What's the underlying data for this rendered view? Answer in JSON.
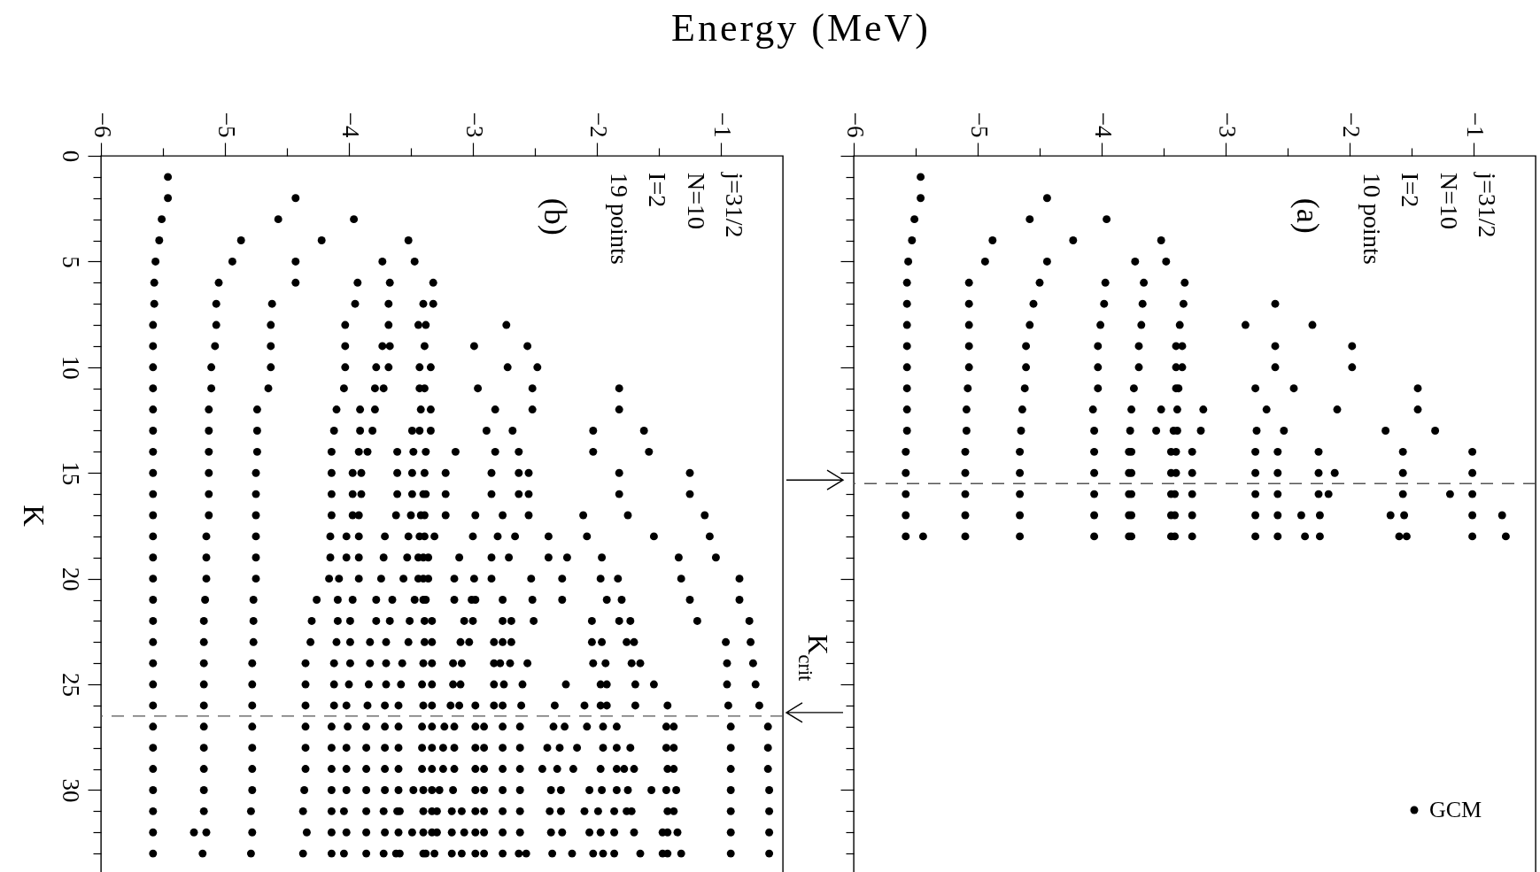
{
  "chart_data": [
    {
      "type": "scatter",
      "xlabel": "Energy (MeV)",
      "ylabel": "K",
      "xlim": [
        -6,
        -0.5
      ],
      "ylim": [
        34,
        0
      ],
      "xticks": [
        -6,
        {
          "value": -5.5,
          "label": null
        },
        -5,
        {
          "value": -4.5,
          "label": null
        },
        -4,
        {
          "value": -3.5,
          "label": null
        },
        -3,
        {
          "value": -2.5,
          "label": null
        },
        -2,
        {
          "value": -1.5,
          "label": null
        },
        -1
      ],
      "yticks": [
        0,
        {
          "value": 1,
          "label": null
        },
        {
          "value": 2,
          "label": null
        },
        {
          "value": 3,
          "label": null
        },
        {
          "value": 4,
          "label": null
        },
        5,
        {
          "value": 6,
          "label": null
        },
        {
          "value": 7,
          "label": null
        },
        {
          "value": 8,
          "label": null
        },
        {
          "value": 9,
          "label": null
        },
        10,
        {
          "value": 11,
          "label": null
        },
        {
          "value": 12,
          "label": null
        },
        {
          "value": 13,
          "label": null
        },
        {
          "value": 14,
          "label": null
        },
        15,
        {
          "value": 16,
          "label": null
        },
        {
          "value": 17,
          "label": null
        },
        {
          "value": 18,
          "label": null
        },
        {
          "value": 19,
          "label": null
        },
        20,
        {
          "value": 21,
          "label": null
        },
        {
          "value": 22,
          "label": null
        },
        {
          "value": 23,
          "label": null
        },
        {
          "value": 24,
          "label": null
        },
        25,
        {
          "value": 26,
          "label": null
        },
        {
          "value": 27,
          "label": null
        },
        {
          "value": 28,
          "label": null
        },
        {
          "value": 29,
          "label": null
        },
        30,
        {
          "value": 31,
          "label": null
        },
        {
          "value": 32,
          "label": null
        },
        {
          "value": 33,
          "label": null
        }
      ],
      "marker": "circle",
      "color": "#000000",
      "annotations": [
        "j=31/2",
        "N=10",
        "I=2",
        "19 points",
        "(b)"
      ],
      "ref_lines": [
        {
          "axis": "y",
          "value": 26.5,
          "label": "K$_{crit}$",
          "color": "#555555",
          "line_style": "dashed"
        }
      ],
      "x": [
        -5.46,
        -5.46,
        -4.43,
        -5.51,
        -4.57,
        -3.96,
        -5.53,
        -4.87,
        -4.22,
        -3.52,
        -5.56,
        -4.94,
        -4.43,
        -3.73,
        -3.47,
        -5.57,
        -5.05,
        -4.43,
        -3.93,
        -3.67,
        -3.32,
        -5.57,
        -5.07,
        -4.62,
        -3.95,
        -3.68,
        -3.4,
        -3.32,
        -5.58,
        -5.07,
        -4.63,
        -4.03,
        -3.68,
        -3.44,
        -3.38,
        -2.73,
        -5.58,
        -5.08,
        -4.63,
        -4.03,
        -3.73,
        -3.67,
        -3.39,
        -2.99,
        -2.56,
        -5.58,
        -5.11,
        -4.63,
        -4.03,
        -3.78,
        -3.68,
        -3.43,
        -3.34,
        -2.72,
        -2.48,
        -5.58,
        -5.11,
        -4.65,
        -4.04,
        -3.79,
        -3.72,
        -3.43,
        -3.39,
        -2.96,
        -2.52,
        -1.82,
        -5.58,
        -5.13,
        -4.74,
        -4.1,
        -3.91,
        -3.79,
        -3.42,
        -3.34,
        -2.82,
        -2.52,
        -1.82,
        -5.58,
        -5.13,
        -4.74,
        -4.12,
        -3.91,
        -3.81,
        -3.49,
        -3.43,
        -3.34,
        -2.89,
        -2.68,
        -2.03,
        -1.62,
        -5.58,
        -5.13,
        -4.74,
        -4.14,
        -3.92,
        -3.85,
        -3.61,
        -3.48,
        -3.38,
        -3.14,
        -2.82,
        -2.63,
        -2.03,
        -1.58,
        -5.58,
        -5.13,
        -4.75,
        -4.14,
        -3.97,
        -3.9,
        -3.61,
        -3.49,
        -3.39,
        -3.22,
        -2.85,
        -2.63,
        -2.55,
        -1.82,
        -1.25,
        -5.58,
        -5.13,
        -4.75,
        -4.14,
        -3.97,
        -3.9,
        -3.61,
        -3.49,
        -3.4,
        -3.38,
        -3.22,
        -2.85,
        -2.63,
        -2.55,
        -1.82,
        -1.25,
        -5.58,
        -5.13,
        -4.75,
        -4.14,
        -3.97,
        -3.92,
        -3.62,
        -3.5,
        -3.42,
        -3.39,
        -3.22,
        -2.98,
        -2.76,
        -2.55,
        -2.11,
        -1.75,
        -1.13,
        -5.58,
        -5.15,
        -4.75,
        -4.15,
        -4.02,
        -3.92,
        -3.71,
        -3.52,
        -3.43,
        -3.39,
        -3.31,
        -3.0,
        -2.8,
        -2.66,
        -2.39,
        -2.08,
        -1.54,
        -1.09,
        -5.58,
        -5.15,
        -4.75,
        -4.15,
        -4.02,
        -3.92,
        -3.72,
        -3.53,
        -3.44,
        -3.4,
        -3.36,
        -3.11,
        -2.85,
        -2.71,
        -2.39,
        -2.24,
        -1.96,
        -1.34,
        -1.04,
        -5.58,
        -5.15,
        -4.75,
        -4.16,
        -4.08,
        -3.92,
        -3.74,
        -3.56,
        -3.44,
        -3.4,
        -3.36,
        -3.15,
        -2.99,
        -2.85,
        -2.53,
        -2.28,
        -1.97,
        -1.83,
        -1.32,
        -0.85,
        -5.58,
        -5.16,
        -4.77,
        -4.26,
        -4.09,
        -3.97,
        -3.78,
        -3.65,
        -3.47,
        -3.4,
        -3.38,
        -3.15,
        -3.01,
        -2.98,
        -2.76,
        -2.52,
        -2.28,
        -1.92,
        -1.8,
        -1.25,
        -0.85,
        -5.58,
        -5.17,
        -4.77,
        -4.3,
        -4.09,
        -3.99,
        -3.78,
        -3.67,
        -3.51,
        -3.39,
        -3.33,
        -3.07,
        -3.0,
        -2.76,
        -2.69,
        -2.51,
        -2.04,
        -1.82,
        -1.73,
        -1.19,
        -0.77,
        -5.58,
        -5.17,
        -4.77,
        -4.31,
        -4.1,
        -3.99,
        -3.83,
        -3.7,
        -3.52,
        -3.39,
        -3.33,
        -3.1,
        -3.03,
        -2.83,
        -2.76,
        -2.69,
        -2.04,
        -1.96,
        -1.76,
        -1.7,
        -0.96,
        -0.76,
        -5.58,
        -5.17,
        -4.78,
        -4.35,
        -4.12,
        -3.99,
        -3.83,
        -3.7,
        -3.57,
        -3.4,
        -3.33,
        -3.16,
        -3.09,
        -2.83,
        -2.78,
        -2.7,
        -2.56,
        -2.03,
        -1.93,
        -1.72,
        -1.65,
        -0.95,
        -0.74,
        -5.58,
        -5.17,
        -4.78,
        -4.35,
        -4.12,
        -4.0,
        -3.84,
        -3.7,
        -3.58,
        -3.41,
        -3.33,
        -3.16,
        -3.1,
        -2.83,
        -2.75,
        -2.6,
        -2.25,
        -1.97,
        -1.92,
        -1.69,
        -1.54,
        -0.95,
        -0.72,
        -5.58,
        -5.17,
        -4.78,
        -4.35,
        -4.12,
        -4.02,
        -3.85,
        -3.71,
        -3.6,
        -3.4,
        -3.33,
        -3.18,
        -3.11,
        -2.98,
        -2.83,
        -2.76,
        -2.61,
        -2.34,
        -2.1,
        -1.97,
        -1.92,
        -1.69,
        -1.43,
        -0.94,
        -0.69,
        -5.58,
        -5.17,
        -4.78,
        -4.35,
        -4.14,
        -4.01,
        -3.86,
        -3.71,
        -3.6,
        -3.41,
        -3.33,
        -3.23,
        -3.15,
        -2.98,
        -2.91,
        -2.76,
        -2.62,
        -2.35,
        -2.26,
        -2.08,
        -1.95,
        -1.84,
        -1.44,
        -1.38,
        -0.92,
        -0.62,
        -5.58,
        -5.17,
        -4.78,
        -4.35,
        -4.14,
        -4.02,
        -3.86,
        -3.71,
        -3.6,
        -3.41,
        -3.33,
        -3.24,
        -3.15,
        -2.98,
        -2.91,
        -2.76,
        -2.62,
        -2.4,
        -2.3,
        -2.16,
        -1.95,
        -1.84,
        -1.73,
        -1.44,
        -1.38,
        -0.92,
        -0.62,
        -5.58,
        -5.17,
        -4.78,
        -4.35,
        -4.14,
        -4.02,
        -3.86,
        -3.71,
        -3.6,
        -3.41,
        -3.33,
        -3.24,
        -3.15,
        -2.98,
        -2.91,
        -2.76,
        -2.62,
        -2.44,
        -2.32,
        -2.19,
        -1.97,
        -1.84,
        -1.78,
        -1.7,
        -1.43,
        -1.38,
        -0.92,
        -0.62,
        -5.58,
        -5.17,
        -4.78,
        -4.36,
        -4.14,
        -4.02,
        -3.86,
        -3.71,
        -3.6,
        -3.48,
        -3.4,
        -3.33,
        -3.27,
        -3.16,
        -2.98,
        -2.91,
        -2.76,
        -2.62,
        -2.37,
        -2.29,
        -2.06,
        -1.96,
        -1.84,
        -1.75,
        -1.56,
        -1.44,
        -1.36,
        -0.92,
        -0.61,
        -5.58,
        -5.17,
        -4.79,
        -4.37,
        -4.14,
        -4.04,
        -3.86,
        -3.72,
        -3.61,
        -3.59,
        -3.4,
        -3.33,
        -3.29,
        -3.17,
        -3.09,
        -2.98,
        -2.91,
        -2.76,
        -2.62,
        -2.38,
        -2.29,
        -2.1,
        -1.99,
        -1.86,
        -1.76,
        -1.72,
        -1.43,
        -1.38,
        -0.92,
        -0.61,
        -5.58,
        -5.25,
        -5.15,
        -4.78,
        -4.34,
        -4.14,
        -4.02,
        -3.86,
        -3.71,
        -3.6,
        -3.49,
        -3.4,
        -3.33,
        -3.29,
        -3.17,
        -3.07,
        -2.98,
        -2.91,
        -2.76,
        -2.62,
        -2.37,
        -2.28,
        -2.06,
        -1.97,
        -1.86,
        -1.7,
        -1.47,
        -1.43,
        -1.35,
        -0.92,
        -0.61,
        -5.58,
        -5.18,
        -4.79,
        -4.37,
        -4.14,
        -4.04,
        -3.86,
        -3.72,
        -3.62,
        -3.59,
        -3.4,
        -3.38,
        -3.31,
        -3.17,
        -3.09,
        -2.98,
        -2.91,
        -2.76,
        -2.63,
        -2.57,
        -2.36,
        -2.2,
        -2.03,
        -1.95,
        -1.86,
        -1.65,
        -1.47,
        -1.43,
        -1.32,
        -0.92,
        -0.61
      ],
      "values": [
        1,
        2,
        2,
        3,
        3,
        3,
        4,
        4,
        4,
        4,
        5,
        5,
        5,
        5,
        5,
        6,
        6,
        6,
        6,
        6,
        6,
        7,
        7,
        7,
        7,
        7,
        7,
        7,
        8,
        8,
        8,
        8,
        8,
        8,
        8,
        8,
        9,
        9,
        9,
        9,
        9,
        9,
        9,
        9,
        9,
        10,
        10,
        10,
        10,
        10,
        10,
        10,
        10,
        10,
        10,
        11,
        11,
        11,
        11,
        11,
        11,
        11,
        11,
        11,
        11,
        11,
        12,
        12,
        12,
        12,
        12,
        12,
        12,
        12,
        12,
        12,
        12,
        13,
        13,
        13,
        13,
        13,
        13,
        13,
        13,
        13,
        13,
        13,
        13,
        13,
        14,
        14,
        14,
        14,
        14,
        14,
        14,
        14,
        14,
        14,
        14,
        14,
        14,
        14,
        15,
        15,
        15,
        15,
        15,
        15,
        15,
        15,
        15,
        15,
        15,
        15,
        15,
        15,
        15,
        16,
        16,
        16,
        16,
        16,
        16,
        16,
        16,
        16,
        16,
        16,
        16,
        16,
        16,
        16,
        16,
        17,
        17,
        17,
        17,
        17,
        17,
        17,
        17,
        17,
        17,
        17,
        17,
        17,
        17,
        17,
        17,
        17,
        18,
        18,
        18,
        18,
        18,
        18,
        18,
        18,
        18,
        18,
        18,
        18,
        18,
        18,
        18,
        18,
        18,
        18,
        19,
        19,
        19,
        19,
        19,
        19,
        19,
        19,
        19,
        19,
        19,
        19,
        19,
        19,
        19,
        19,
        19,
        19,
        19,
        20,
        20,
        20,
        20,
        20,
        20,
        20,
        20,
        20,
        20,
        20,
        20,
        20,
        20,
        20,
        20,
        20,
        20,
        20,
        20,
        21,
        21,
        21,
        21,
        21,
        21,
        21,
        21,
        21,
        21,
        21,
        21,
        21,
        21,
        21,
        21,
        21,
        21,
        21,
        21,
        21,
        22,
        22,
        22,
        22,
        22,
        22,
        22,
        22,
        22,
        22,
        22,
        22,
        22,
        22,
        22,
        22,
        22,
        22,
        22,
        22,
        22,
        23,
        23,
        23,
        23,
        23,
        23,
        23,
        23,
        23,
        23,
        23,
        23,
        23,
        23,
        23,
        23,
        23,
        23,
        23,
        23,
        23,
        23,
        24,
        24,
        24,
        24,
        24,
        24,
        24,
        24,
        24,
        24,
        24,
        24,
        24,
        24,
        24,
        24,
        24,
        24,
        24,
        24,
        24,
        24,
        24,
        25,
        25,
        25,
        25,
        25,
        25,
        25,
        25,
        25,
        25,
        25,
        25,
        25,
        25,
        25,
        25,
        25,
        25,
        25,
        25,
        25,
        25,
        25,
        26,
        26,
        26,
        26,
        26,
        26,
        26,
        26,
        26,
        26,
        26,
        26,
        26,
        26,
        26,
        26,
        26,
        26,
        26,
        26,
        26,
        26,
        26,
        26,
        26,
        27,
        27,
        27,
        27,
        27,
        27,
        27,
        27,
        27,
        27,
        27,
        27,
        27,
        27,
        27,
        27,
        27,
        27,
        27,
        27,
        27,
        27,
        27,
        27,
        27,
        27,
        28,
        28,
        28,
        28,
        28,
        28,
        28,
        28,
        28,
        28,
        28,
        28,
        28,
        28,
        28,
        28,
        28,
        28,
        28,
        28,
        28,
        28,
        28,
        28,
        28,
        28,
        28,
        29,
        29,
        29,
        29,
        29,
        29,
        29,
        29,
        29,
        29,
        29,
        29,
        29,
        29,
        29,
        29,
        29,
        29,
        29,
        29,
        29,
        29,
        29,
        29,
        29,
        29,
        29,
        29,
        30,
        30,
        30,
        30,
        30,
        30,
        30,
        30,
        30,
        30,
        30,
        30,
        30,
        30,
        30,
        30,
        30,
        30,
        30,
        30,
        30,
        30,
        30,
        30,
        30,
        30,
        30,
        30,
        30,
        31,
        31,
        31,
        31,
        31,
        31,
        31,
        31,
        31,
        31,
        31,
        31,
        31,
        31,
        31,
        31,
        31,
        31,
        31,
        31,
        31,
        31,
        31,
        31,
        31,
        31,
        31,
        31,
        31,
        31,
        32,
        32,
        32,
        32,
        32,
        32,
        32,
        32,
        32,
        32,
        32,
        32,
        32,
        32,
        32,
        32,
        32,
        32,
        32,
        32,
        32,
        32,
        32,
        32,
        32,
        32,
        32,
        32,
        32,
        32,
        32,
        33,
        33,
        33,
        33,
        33,
        33,
        33,
        33,
        33,
        33,
        33,
        33,
        33,
        33,
        33,
        33,
        33,
        33,
        33,
        33,
        33,
        33,
        33,
        33,
        33,
        33,
        33,
        33,
        33,
        33,
        33
      ]
    },
    {
      "type": "scatter",
      "xlim": [
        -6,
        -0.5
      ],
      "ylim": [
        34,
        0
      ],
      "tick_labels": "x",
      "xticks": [
        -6,
        {
          "value": -5.5,
          "label": null
        },
        -5,
        {
          "value": -4.5,
          "label": null
        },
        -4,
        {
          "value": -3.5,
          "label": null
        },
        -3,
        {
          "value": -2.5,
          "label": null
        },
        -2,
        {
          "value": -1.5,
          "label": null
        },
        -1
      ],
      "yticks": [
        0,
        {
          "value": 1,
          "label": null
        },
        {
          "value": 2,
          "label": null
        },
        {
          "value": 3,
          "label": null
        },
        {
          "value": 4,
          "label": null
        },
        5,
        {
          "value": 6,
          "label": null
        },
        {
          "value": 7,
          "label": null
        },
        {
          "value": 8,
          "label": null
        },
        {
          "value": 9,
          "label": null
        },
        10,
        {
          "value": 11,
          "label": null
        },
        {
          "value": 12,
          "label": null
        },
        {
          "value": 13,
          "label": null
        },
        {
          "value": 14,
          "label": null
        },
        15,
        {
          "value": 16,
          "label": null
        },
        {
          "value": 17,
          "label": null
        },
        {
          "value": 18,
          "label": null
        },
        {
          "value": 19,
          "label": null
        },
        20,
        {
          "value": 21,
          "label": null
        },
        {
          "value": 22,
          "label": null
        },
        {
          "value": 23,
          "label": null
        },
        {
          "value": 24,
          "label": null
        },
        25,
        {
          "value": 26,
          "label": null
        },
        {
          "value": 27,
          "label": null
        },
        {
          "value": 28,
          "label": null
        },
        {
          "value": 29,
          "label": null
        },
        30,
        {
          "value": 31,
          "label": null
        },
        {
          "value": 32,
          "label": null
        },
        {
          "value": 33,
          "label": null
        }
      ],
      "marker": "circle",
      "legend": "bottom right",
      "annotations": [
        "j=31/2",
        "N=10",
        "I=2",
        "10 points",
        "(a)"
      ],
      "ref_lines": [
        {
          "axis": "y",
          "value": 15.5,
          "color": "#555555",
          "line_style": "dashed"
        }
      ],
      "series": [
        {
          "name": "GCM",
          "color": "#000000",
          "x": [
            -5.46,
            -5.46,
            -4.44,
            -5.51,
            -4.58,
            -3.96,
            -5.53,
            -4.88,
            -4.23,
            -3.52,
            -5.56,
            -4.94,
            -4.44,
            -3.73,
            -3.48,
            -5.57,
            -5.07,
            -4.5,
            -3.97,
            -3.66,
            -3.33,
            -5.57,
            -5.07,
            -4.55,
            -3.98,
            -3.67,
            -3.34,
            -2.6,
            -5.57,
            -5.07,
            -4.58,
            -4.01,
            -3.68,
            -3.37,
            -2.84,
            -2.3,
            -5.57,
            -5.07,
            -4.61,
            -4.03,
            -3.7,
            -3.4,
            -3.35,
            -2.6,
            -1.98,
            -5.57,
            -5.07,
            -4.61,
            -4.03,
            -3.7,
            -3.4,
            -3.35,
            -2.6,
            -1.98,
            -5.57,
            -5.08,
            -4.62,
            -4.03,
            -3.74,
            -3.4,
            -3.38,
            -2.76,
            -2.45,
            -1.45,
            -5.57,
            -5.09,
            -4.64,
            -4.07,
            -3.76,
            -3.52,
            -3.39,
            -3.18,
            -2.67,
            -2.1,
            -1.45,
            -5.57,
            -5.09,
            -4.65,
            -4.06,
            -3.77,
            -3.56,
            -3.42,
            -3.39,
            -3.2,
            -2.75,
            -2.53,
            -1.71,
            -1.31,
            -5.58,
            -5.1,
            -4.66,
            -4.06,
            -3.78,
            -3.76,
            -3.44,
            -3.4,
            -3.27,
            -2.76,
            -2.58,
            -2.25,
            -1.57,
            -1.01,
            -5.58,
            -5.1,
            -4.66,
            -4.06,
            -3.78,
            -3.76,
            -3.44,
            -3.4,
            -3.27,
            -2.76,
            -2.58,
            -2.25,
            -2.12,
            -1.57,
            -1.01,
            -5.58,
            -5.1,
            -4.66,
            -4.06,
            -3.78,
            -3.76,
            -3.44,
            -3.41,
            -3.27,
            -2.76,
            -2.58,
            -2.25,
            -2.17,
            -1.57,
            -1.19,
            -1.01,
            -5.58,
            -5.1,
            -4.66,
            -4.06,
            -3.78,
            -3.76,
            -3.44,
            -3.41,
            -3.27,
            -2.76,
            -2.58,
            -2.39,
            -2.24,
            -1.67,
            -1.56,
            -1.01,
            -0.77,
            -5.58,
            -5.44,
            -5.1,
            -4.66,
            -4.06,
            -3.78,
            -3.76,
            -3.44,
            -3.41,
            -3.27,
            -2.76,
            -2.58,
            -2.36,
            -2.24,
            -1.6,
            -1.54,
            -1.01,
            -0.74
          ],
          "values": [
            1,
            2,
            2,
            3,
            3,
            3,
            4,
            4,
            4,
            4,
            5,
            5,
            5,
            5,
            5,
            6,
            6,
            6,
            6,
            6,
            6,
            7,
            7,
            7,
            7,
            7,
            7,
            7,
            8,
            8,
            8,
            8,
            8,
            8,
            8,
            8,
            9,
            9,
            9,
            9,
            9,
            9,
            9,
            9,
            9,
            10,
            10,
            10,
            10,
            10,
            10,
            10,
            10,
            10,
            11,
            11,
            11,
            11,
            11,
            11,
            11,
            11,
            11,
            11,
            12,
            12,
            12,
            12,
            12,
            12,
            12,
            12,
            12,
            12,
            12,
            13,
            13,
            13,
            13,
            13,
            13,
            13,
            13,
            13,
            13,
            13,
            13,
            13,
            14,
            14,
            14,
            14,
            14,
            14,
            14,
            14,
            14,
            14,
            14,
            14,
            14,
            14,
            15,
            15,
            15,
            15,
            15,
            15,
            15,
            15,
            15,
            15,
            15,
            15,
            15,
            15,
            15,
            16,
            16,
            16,
            16,
            16,
            16,
            16,
            16,
            16,
            16,
            16,
            16,
            16,
            16,
            16,
            16,
            17,
            17,
            17,
            17,
            17,
            17,
            17,
            17,
            17,
            17,
            17,
            17,
            17,
            17,
            17,
            17,
            17,
            18,
            18,
            18,
            18,
            18,
            18,
            18,
            18,
            18,
            18,
            18,
            18,
            18,
            18,
            18,
            18,
            18,
            18
          ]
        }
      ]
    }
  ]
}
